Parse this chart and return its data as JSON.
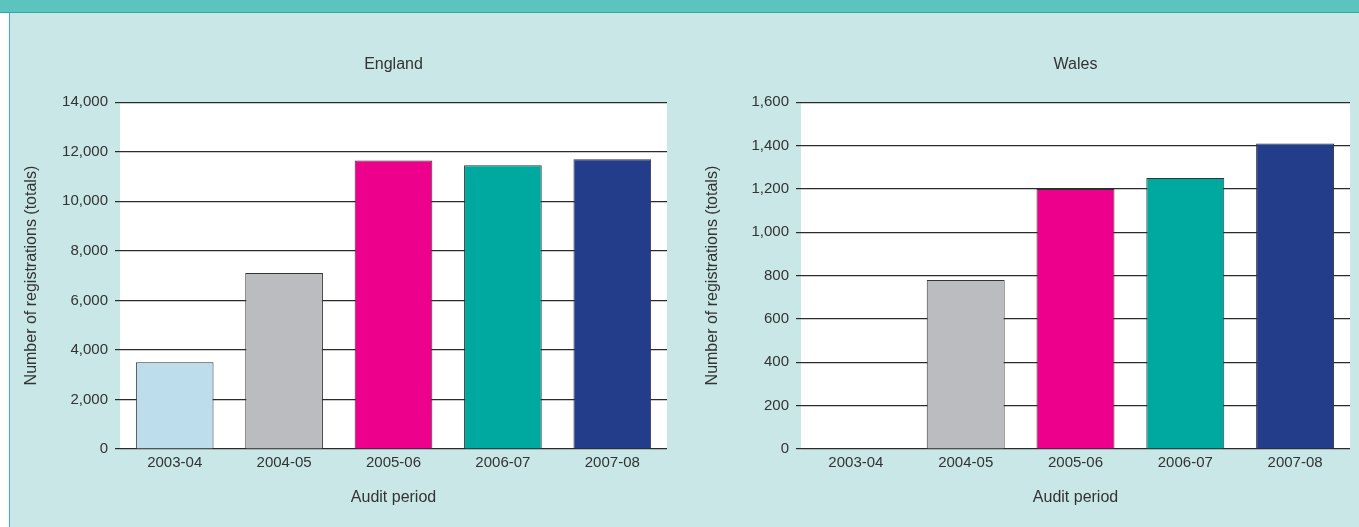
{
  "chart_data": [
    {
      "type": "bar",
      "title": "England",
      "xlabel": "Audit period",
      "ylabel": "Number of registrations (totals)",
      "categories": [
        "2003-04",
        "2004-05",
        "2005-06",
        "2006-07",
        "2007-08"
      ],
      "values": [
        3500,
        7100,
        11650,
        11450,
        11700
      ],
      "colors": [
        "#bddcec",
        "#bbbcc0",
        "#ec008c",
        "#00a99f",
        "#233d8b"
      ],
      "ylim": [
        0,
        14000
      ],
      "yticks": [
        0,
        {
          "value": 2000,
          "label": "2,000"
        },
        {
          "value": 4000,
          "label": "4,000"
        },
        {
          "value": 6000,
          "label": "6,000"
        },
        {
          "value": 8000,
          "label": "8,000"
        },
        {
          "value": 10000,
          "label": "10,000"
        },
        {
          "value": 12000,
          "label": "12,000"
        },
        {
          "value": 14000,
          "label": "14,000"
        }
      ],
      "grid": "y"
    },
    {
      "type": "bar",
      "title": "Wales",
      "xlabel": "Audit period",
      "ylabel": "Number of registrations (totals)",
      "categories": [
        "2003-04",
        "2004-05",
        "2005-06",
        "2006-07",
        "2007-08"
      ],
      "values": [
        null,
        780,
        1200,
        1250,
        1410
      ],
      "colors": [
        null,
        "#bbbcc0",
        "#ec008c",
        "#00a99f",
        "#233d8b"
      ],
      "ylim": [
        0,
        1600
      ],
      "yticks": [
        0,
        200,
        400,
        600,
        800,
        {
          "value": 1000,
          "label": "1,000"
        },
        {
          "value": 1200,
          "label": "1,200"
        },
        {
          "value": 1400,
          "label": "1,400"
        },
        {
          "value": 1600,
          "label": "1,600"
        }
      ],
      "grid": "y"
    }
  ]
}
